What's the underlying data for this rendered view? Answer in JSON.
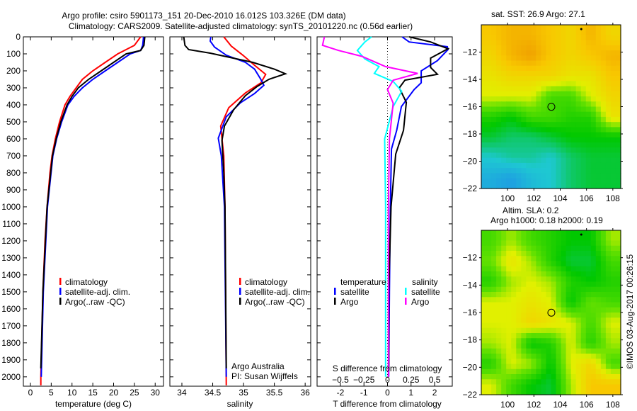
{
  "title": {
    "line1": "Argo profile: csiro 5901173_151 20-Dec-2010 16.012S 103.326E (DM data)",
    "line2": "Climatology: CARS2009. Satellite-adjusted climatology: synTS_20101220.nc (0.56d earlier)"
  },
  "colors": {
    "climatology": "#ff0000",
    "satellite": "#0000ff",
    "argo": "#000000",
    "s_satellite": "#00ffff",
    "s_argo": "#ff00ff"
  },
  "credit": {
    "line1": "Argo Australia",
    "line2": "PI: Susan Wijffels"
  },
  "copyright": "©IMOS 03-Aug-2017 00:26:15",
  "chart_data": [
    {
      "type": "line",
      "id": "temperature",
      "xlabel": "temperature (deg C)",
      "ylabel": "",
      "xlim": [
        -1.7,
        32
      ],
      "ylim": [
        2055,
        0
      ],
      "xticks": [
        0,
        5,
        10,
        15,
        20,
        25,
        30
      ],
      "yticks": [
        0,
        100,
        200,
        300,
        400,
        500,
        600,
        700,
        800,
        900,
        1000,
        1100,
        1200,
        1300,
        1400,
        1500,
        1600,
        1700,
        1800,
        1900,
        2000
      ],
      "legend": [
        "climatology",
        "satellite-adj. clim.",
        "Argo(..raw -QC)"
      ],
      "series": [
        {
          "name": "climatology",
          "color": "#ff0000",
          "depth": [
            0,
            50,
            100,
            150,
            200,
            250,
            300,
            350,
            400,
            500,
            600,
            700,
            800,
            1000,
            1200,
            1500,
            2000,
            2050
          ],
          "values": [
            26.5,
            25,
            21,
            18,
            15,
            12.5,
            11,
            9.5,
            8.3,
            7,
            6,
            5.2,
            4.7,
            4.0,
            3.5,
            3.0,
            2.5,
            2.5
          ]
        },
        {
          "name": "satellite-adj. clim.",
          "color": "#0000ff",
          "depth": [
            0,
            50,
            80,
            100,
            150,
            200,
            250,
            300,
            350,
            400,
            500,
            600,
            700,
            1000,
            1500,
            2000
          ],
          "values": [
            27.2,
            27,
            26.5,
            24,
            21,
            18,
            15,
            12.5,
            10.5,
            9,
            7.5,
            6.3,
            5.4,
            4.1,
            3.1,
            2.6
          ]
        },
        {
          "name": "Argo(..raw -QC)",
          "color": "#000000",
          "depth": [
            0,
            50,
            80,
            100,
            150,
            200,
            250,
            300,
            350,
            400,
            500,
            600,
            700,
            1000,
            1500,
            1950
          ],
          "values": [
            27.5,
            27.3,
            26.5,
            23,
            20,
            17,
            14,
            11.5,
            10,
            8.8,
            7.3,
            6.2,
            5.3,
            4.0,
            3.0,
            2.5
          ]
        }
      ]
    },
    {
      "type": "line",
      "id": "salinity",
      "xlabel": "salinity",
      "xlim": [
        33.805,
        36.09
      ],
      "ylim": [
        2055,
        0
      ],
      "xticks": [
        34,
        34.5,
        35,
        35.5,
        36
      ],
      "legend": [
        "climatology",
        "satellite-adj. clim.",
        "Argo(..raw -QC)"
      ],
      "series": [
        {
          "name": "climatology",
          "color": "#ff0000",
          "depth": [
            0,
            54,
            108,
            167,
            221,
            271,
            330,
            417,
            525,
            700,
            1000,
            2050
          ],
          "values": [
            34.68,
            34.8,
            34.99,
            35.18,
            35.36,
            35.28,
            35.03,
            34.76,
            34.63,
            34.68,
            34.7,
            34.72
          ]
        },
        {
          "name": "satellite-adj. clim.",
          "color": "#0000ff",
          "depth": [
            0,
            25,
            60,
            108,
            150,
            190,
            250,
            285,
            333,
            388,
            470,
            596,
            700,
            1000,
            2000
          ],
          "values": [
            34.47,
            34.46,
            34.53,
            34.72,
            35.03,
            35.18,
            35.28,
            35.33,
            35.18,
            34.95,
            34.72,
            34.59,
            34.64,
            34.69,
            34.72
          ]
        },
        {
          "name": "Argo(..raw -QC)",
          "color": "#000000",
          "depth": [
            0,
            50,
            75,
            96,
            150,
            190,
            217,
            250,
            292,
            346,
            429,
            525,
            610,
            800,
            1000,
            1950
          ],
          "values": [
            34.03,
            34.05,
            34.11,
            34.46,
            35.15,
            35.5,
            35.68,
            35.41,
            35.22,
            35.03,
            34.84,
            34.69,
            34.65,
            34.68,
            34.7,
            34.72
          ]
        }
      ]
    },
    {
      "type": "line",
      "id": "difference",
      "xlabel": "T difference from climatology",
      "x2label": "S difference from climatology",
      "xlim": [
        -2.99,
        2.75
      ],
      "ylim": [
        2055,
        0
      ],
      "xticks": [
        -2,
        -1,
        0,
        1,
        2
      ],
      "x2ticks": [
        -0.5,
        -0.25,
        0,
        0.25,
        0.5
      ],
      "legend_headers": [
        "temperature",
        "salinity"
      ],
      "legend": [
        "satellite",
        "Argo",
        "satellite",
        "Argo"
      ],
      "series": [
        {
          "name": "T satellite",
          "axis": "T",
          "color": "#0000ff",
          "depth": [
            0,
            30,
            58,
            75,
            140,
            200,
            270,
            310,
            410,
            550,
            660,
            1000,
            1500,
            2000
          ],
          "values": [
            0.62,
            0.92,
            2.54,
            2.57,
            2.12,
            1.43,
            1.43,
            1.13,
            0.59,
            0.39,
            0.17,
            0.12,
            0.08,
            0.05
          ]
        },
        {
          "name": "T Argo",
          "axis": "T",
          "color": "#000000",
          "depth": [
            0,
            30,
            70,
            125,
            180,
            220,
            255,
            300,
            385,
            550,
            690,
            1000,
            1500,
            1950
          ],
          "values": [
            0.92,
            1.83,
            2.57,
            1.83,
            1.83,
            2.12,
            0.74,
            0.5,
            0.8,
            0.68,
            0.35,
            0.15,
            0.05,
            0.05
          ]
        },
        {
          "name": "S satellite",
          "axis": "S",
          "color": "#00ffff",
          "depth": [
            0,
            30,
            80,
            130,
            175,
            215,
            262,
            320,
            410,
            600,
            1000,
            2000
          ],
          "values": [
            -0.17,
            -0.24,
            -0.32,
            -0.24,
            -0.09,
            -0.14,
            0.06,
            0.15,
            0.06,
            -0.03,
            -0.02,
            -0.02
          ]
        },
        {
          "name": "S Argo",
          "axis": "S",
          "color": "#ff00ff",
          "depth": [
            0,
            50,
            80,
            115,
            175,
            215,
            255,
            310,
            390,
            600,
            1000,
            2000
          ],
          "values": [
            -0.67,
            -0.69,
            -0.52,
            -0.27,
            -0.02,
            0.32,
            0.06,
            0.0,
            0.06,
            0.02,
            0.01,
            0.01
          ]
        }
      ]
    },
    {
      "type": "heatmap",
      "id": "sst-map",
      "title": "sat. SST: 26.9 Argo: 27.1",
      "xlim": [
        98.0,
        108.6
      ],
      "ylim": [
        -22,
        -10
      ],
      "xticks": [
        100,
        102,
        104,
        106,
        108
      ],
      "yticks": [
        -12,
        -14,
        -16,
        -18,
        -20,
        -22
      ],
      "profile_location": [
        103.326,
        -16.012
      ],
      "grid": [
        [
          0.9,
          0.95,
          0.95,
          0.9,
          0.85,
          0.95,
          0.85
        ],
        [
          0.85,
          0.95,
          1,
          0.9,
          0.85,
          0.9,
          0.95
        ],
        [
          0.8,
          0.85,
          0.85,
          0.85,
          0.8,
          0.8,
          0.9
        ],
        [
          0.75,
          0.75,
          0.75,
          0.6,
          0.6,
          0.75,
          0.85
        ],
        [
          0.55,
          0.5,
          0.6,
          0.6,
          0.55,
          0.55,
          0.8
        ],
        [
          0.45,
          0.4,
          0.4,
          0.45,
          0.5,
          0.5,
          0.5
        ],
        [
          0.3,
          0.35,
          0.35,
          0.3,
          0.4,
          0.45,
          0.45
        ],
        [
          0.2,
          0.15,
          0.25,
          0.3,
          0.4,
          0.45,
          0.45
        ]
      ]
    },
    {
      "type": "heatmap",
      "id": "sla-map",
      "title": "Altim. SLA: 0.2",
      "subtitle": "Argo h1000: 0.18 h2000: 0.19",
      "xlim": [
        98.0,
        108.6
      ],
      "ylim": [
        -22,
        -10
      ],
      "xticks": [
        100,
        102,
        104,
        106,
        108
      ],
      "yticks": [
        -12,
        -14,
        -16,
        -18,
        -20,
        -22
      ],
      "profile_location": [
        103.326,
        -16.012
      ],
      "grid": [
        [
          0.6,
          0.7,
          0.6,
          0.55,
          0.5,
          0.5,
          0.7
        ],
        [
          0.65,
          0.8,
          0.7,
          0.55,
          0.45,
          0.45,
          0.6
        ],
        [
          0.55,
          0.7,
          0.75,
          0.7,
          0.55,
          0.5,
          0.55
        ],
        [
          0.75,
          0.75,
          0.8,
          0.75,
          0.5,
          0.65,
          0.6
        ],
        [
          0.75,
          0.75,
          0.85,
          0.8,
          0.75,
          0.6,
          0.75
        ],
        [
          0.7,
          0.75,
          0.5,
          0.55,
          0.75,
          0.55,
          0.7
        ],
        [
          0.55,
          0.75,
          0.7,
          0.5,
          0.75,
          0.85,
          0.6
        ],
        [
          0.75,
          0.6,
          0.5,
          0.45,
          0.7,
          0.9,
          0.9
        ]
      ]
    }
  ]
}
